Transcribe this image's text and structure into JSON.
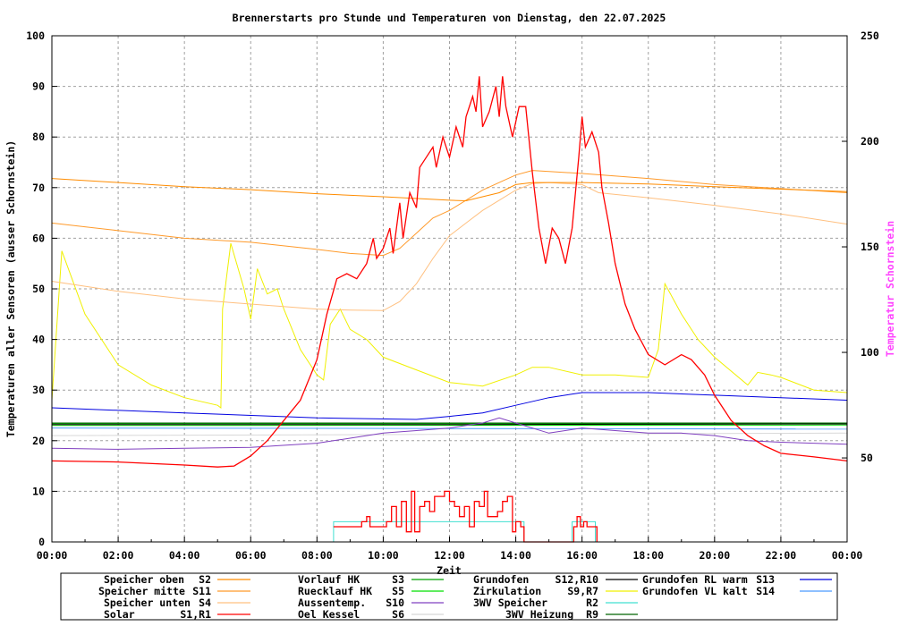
{
  "chart_data": {
    "type": "line",
    "title": "Brennerstarts pro Stunde und Temperaturen von Dienstag, den 22.07.2025",
    "xlabel": "Zeit",
    "ylabel": "Temperaturen aller Sensoren (ausser Schornstein)",
    "y2label": "Temperatur Schornstein",
    "y2label_color": "#ff44ff",
    "xlim": [
      0,
      24
    ],
    "ylim": [
      0,
      100
    ],
    "y2lim": [
      10.2,
      250
    ],
    "grid": true,
    "x_ticks": [
      "00:00",
      "02:00",
      "04:00",
      "06:00",
      "08:00",
      "10:00",
      "12:00",
      "14:00",
      "16:00",
      "18:00",
      "20:00",
      "22:00",
      "00:00"
    ],
    "y_ticks": [
      "0",
      "10",
      "20",
      "30",
      "40",
      "50",
      "60",
      "70",
      "80",
      "90",
      "100"
    ],
    "y2_ticks": [
      "50",
      "100",
      "150",
      "200",
      "250"
    ],
    "legend_placement": "bottom",
    "series": [
      {
        "name": "Speicher oben",
        "code": "S2",
        "color": "#ff8c00",
        "points": [
          [
            0,
            71.8
          ],
          [
            2,
            71
          ],
          [
            4,
            70.2
          ],
          [
            6,
            69.6
          ],
          [
            8,
            68.8
          ],
          [
            10,
            68.2
          ],
          [
            12,
            67.5
          ],
          [
            12.5,
            67.4
          ],
          [
            13,
            68.2
          ],
          [
            13.5,
            69
          ],
          [
            14,
            70.6
          ],
          [
            14.5,
            71
          ],
          [
            16,
            71
          ],
          [
            18,
            70.7
          ],
          [
            20,
            70.2
          ],
          [
            22,
            69.7
          ],
          [
            24,
            69.2
          ]
        ]
      },
      {
        "name": "Speicher mitte",
        "code": "S11",
        "color": "#ff9a2a",
        "points": [
          [
            0,
            63
          ],
          [
            2,
            61.5
          ],
          [
            4,
            60
          ],
          [
            6,
            59.2
          ],
          [
            8,
            57.8
          ],
          [
            9,
            57
          ],
          [
            10,
            56.6
          ],
          [
            10.5,
            58
          ],
          [
            11,
            61
          ],
          [
            11.5,
            64
          ],
          [
            12,
            65.5
          ],
          [
            12.5,
            67.5
          ],
          [
            13,
            69.5
          ],
          [
            13.5,
            71
          ],
          [
            14,
            72.5
          ],
          [
            14.5,
            73.4
          ],
          [
            15,
            73.2
          ],
          [
            16,
            72.8
          ],
          [
            18,
            71.8
          ],
          [
            20,
            70.6
          ],
          [
            22,
            69.8
          ],
          [
            24,
            69
          ]
        ]
      },
      {
        "name": "Speicher unten",
        "code": "S4",
        "color": "#ffc080",
        "points": [
          [
            0,
            51.5
          ],
          [
            2,
            49.5
          ],
          [
            4,
            48
          ],
          [
            6,
            47
          ],
          [
            8,
            46
          ],
          [
            9,
            45.8
          ],
          [
            10,
            45.7
          ],
          [
            10.5,
            47.5
          ],
          [
            11,
            51
          ],
          [
            11.5,
            56
          ],
          [
            12,
            60.5
          ],
          [
            12.5,
            63
          ],
          [
            13,
            65.5
          ],
          [
            13.5,
            67.5
          ],
          [
            14,
            69.5
          ],
          [
            14.5,
            70.8
          ],
          [
            15,
            71
          ],
          [
            16,
            70.6
          ],
          [
            16.5,
            69
          ],
          [
            18,
            68
          ],
          [
            20,
            66.5
          ],
          [
            22,
            64.8
          ],
          [
            24,
            62.8
          ]
        ]
      },
      {
        "name": "Solar",
        "code": "S1,R1",
        "color": "#ff0000",
        "points": [
          [
            0,
            16
          ],
          [
            2,
            15.8
          ],
          [
            4,
            15.2
          ],
          [
            5,
            14.8
          ],
          [
            5.5,
            15
          ],
          [
            6,
            17
          ],
          [
            6.5,
            20
          ],
          [
            7,
            24
          ],
          [
            7.5,
            28
          ],
          [
            8,
            36
          ],
          [
            8.3,
            45
          ],
          [
            8.6,
            52
          ],
          [
            8.9,
            53
          ],
          [
            9.2,
            52
          ],
          [
            9.5,
            55
          ],
          [
            9.7,
            60
          ],
          [
            9.8,
            56
          ],
          [
            10,
            58
          ],
          [
            10.2,
            62
          ],
          [
            10.3,
            57
          ],
          [
            10.5,
            67
          ],
          [
            10.6,
            60
          ],
          [
            10.8,
            69
          ],
          [
            11,
            66
          ],
          [
            11.1,
            74
          ],
          [
            11.3,
            76
          ],
          [
            11.5,
            78
          ],
          [
            11.6,
            74
          ],
          [
            11.8,
            80
          ],
          [
            12,
            76
          ],
          [
            12.2,
            82
          ],
          [
            12.4,
            78
          ],
          [
            12.5,
            84
          ],
          [
            12.7,
            88
          ],
          [
            12.8,
            85
          ],
          [
            12.9,
            92
          ],
          [
            13,
            82
          ],
          [
            13.2,
            85
          ],
          [
            13.4,
            90
          ],
          [
            13.5,
            84
          ],
          [
            13.6,
            92
          ],
          [
            13.7,
            86
          ],
          [
            13.9,
            80
          ],
          [
            14.1,
            86
          ],
          [
            14.3,
            86
          ],
          [
            14.5,
            73
          ],
          [
            14.7,
            62
          ],
          [
            14.9,
            55
          ],
          [
            15.1,
            62
          ],
          [
            15.3,
            60
          ],
          [
            15.5,
            55
          ],
          [
            15.7,
            62
          ],
          [
            15.9,
            76
          ],
          [
            16,
            84
          ],
          [
            16.1,
            78
          ],
          [
            16.3,
            81
          ],
          [
            16.5,
            77
          ],
          [
            16.6,
            70
          ],
          [
            16.8,
            63
          ],
          [
            17,
            55
          ],
          [
            17.3,
            47
          ],
          [
            17.6,
            42
          ],
          [
            18,
            37
          ],
          [
            18.5,
            35
          ],
          [
            19,
            37
          ],
          [
            19.3,
            36
          ],
          [
            19.7,
            33
          ],
          [
            20,
            29
          ],
          [
            20.5,
            24
          ],
          [
            21,
            21
          ],
          [
            21.5,
            19
          ],
          [
            22,
            17.5
          ],
          [
            23,
            16.8
          ],
          [
            24,
            16
          ]
        ]
      },
      {
        "name": "Vorlauf HK",
        "code": "S3",
        "color": "#00a000",
        "points": [
          [
            0,
            23.4
          ],
          [
            24,
            23.4
          ]
        ]
      },
      {
        "name": "Ruecklauf HK",
        "code": "S5",
        "color": "#00e000",
        "points": [
          [
            0,
            23
          ],
          [
            24,
            23.1
          ]
        ]
      },
      {
        "name": "Aussentemp.",
        "code": "S10",
        "color": "#8040c0",
        "points": [
          [
            0,
            18.5
          ],
          [
            2,
            18.3
          ],
          [
            4,
            18.5
          ],
          [
            6,
            18.7
          ],
          [
            8,
            19.5
          ],
          [
            9,
            20.5
          ],
          [
            10,
            21.5
          ],
          [
            11,
            22
          ],
          [
            12,
            22.5
          ],
          [
            13,
            23.5
          ],
          [
            13.5,
            24.5
          ],
          [
            14,
            23.5
          ],
          [
            15,
            21.5
          ],
          [
            16,
            22.5
          ],
          [
            17,
            22
          ],
          [
            18,
            21.5
          ],
          [
            19,
            21.5
          ],
          [
            20,
            21
          ],
          [
            21,
            20
          ],
          [
            22,
            19.7
          ],
          [
            24,
            19.3
          ]
        ]
      },
      {
        "name": "Oel Kessel",
        "code": "S6",
        "color": "#d8d8d8",
        "points": [
          [
            0,
            21
          ],
          [
            24,
            21.5
          ]
        ]
      },
      {
        "name": "Grundofen",
        "code": "S12,R10",
        "color": "#000000",
        "points": [
          [
            0,
            23.2
          ],
          [
            12,
            23.2
          ],
          [
            24,
            23.3
          ]
        ]
      },
      {
        "name": "Zirkulation",
        "code": "S9,R7",
        "color": "#f0f000",
        "points": [
          [
            0,
            28
          ],
          [
            0.3,
            57.5
          ],
          [
            1,
            45
          ],
          [
            2,
            35
          ],
          [
            3,
            31
          ],
          [
            4,
            28.5
          ],
          [
            5,
            27
          ],
          [
            5.1,
            26.5
          ],
          [
            5.15,
            46
          ],
          [
            5.4,
            59
          ],
          [
            5.8,
            50
          ],
          [
            6,
            44
          ],
          [
            6.2,
            54
          ],
          [
            6.5,
            49
          ],
          [
            6.8,
            50
          ],
          [
            7,
            46
          ],
          [
            7.5,
            38
          ],
          [
            8,
            33
          ],
          [
            8.2,
            32
          ],
          [
            8.4,
            43
          ],
          [
            8.7,
            46
          ],
          [
            9,
            42
          ],
          [
            9.5,
            40
          ],
          [
            10,
            36.5
          ],
          [
            11,
            34
          ],
          [
            12,
            31.5
          ],
          [
            13,
            30.8
          ],
          [
            14,
            33
          ],
          [
            14.5,
            34.5
          ],
          [
            15,
            34.5
          ],
          [
            16,
            33
          ],
          [
            17,
            33
          ],
          [
            18,
            32.5
          ],
          [
            18.3,
            38
          ],
          [
            18.5,
            51
          ],
          [
            19,
            45
          ],
          [
            19.5,
            40
          ],
          [
            20,
            36.5
          ],
          [
            21,
            31
          ],
          [
            21.3,
            33.5
          ],
          [
            21.7,
            33
          ],
          [
            22,
            32.5
          ],
          [
            23,
            30
          ],
          [
            24,
            29.5
          ]
        ]
      },
      {
        "name": "3WV Speicher",
        "code": "R2",
        "color": "#40e0d0",
        "steps": true,
        "points": [
          [
            0,
            0
          ],
          [
            8.5,
            4
          ],
          [
            14.25,
            0
          ],
          [
            15.7,
            4
          ],
          [
            16.4,
            0
          ],
          [
            24,
            0
          ]
        ]
      },
      {
        "name": "3WV Heizung",
        "code": "R9",
        "color": "#006400",
        "points": [
          [
            0,
            23.5
          ],
          [
            24,
            23.5
          ]
        ]
      },
      {
        "name": "Grundofen RL warm",
        "code": "S13",
        "color": "#0000e0",
        "points": [
          [
            0,
            26.5
          ],
          [
            4,
            25.5
          ],
          [
            8,
            24.5
          ],
          [
            11,
            24.2
          ],
          [
            12,
            24.8
          ],
          [
            13,
            25.5
          ],
          [
            14,
            27
          ],
          [
            15,
            28.5
          ],
          [
            16,
            29.5
          ],
          [
            18,
            29.5
          ],
          [
            20,
            29
          ],
          [
            22,
            28.5
          ],
          [
            24,
            28
          ]
        ]
      },
      {
        "name": "Grundofen VL kalt",
        "code": "S14",
        "color": "#4a9aff",
        "points": [
          [
            0,
            22.5
          ],
          [
            24,
            22.3
          ]
        ]
      }
    ],
    "burner_starts": {
      "color": "#ff0000",
      "steps": [
        [
          8.5,
          3
        ],
        [
          9.35,
          4
        ],
        [
          9.5,
          5
        ],
        [
          9.6,
          3
        ],
        [
          9.95,
          3
        ],
        [
          10.1,
          4
        ],
        [
          10.25,
          7
        ],
        [
          10.4,
          3
        ],
        [
          10.55,
          8
        ],
        [
          10.7,
          2
        ],
        [
          10.85,
          10
        ],
        [
          10.95,
          2
        ],
        [
          11.1,
          7
        ],
        [
          11.25,
          8
        ],
        [
          11.4,
          6
        ],
        [
          11.55,
          9
        ],
        [
          11.7,
          9
        ],
        [
          11.85,
          10
        ],
        [
          12.0,
          8
        ],
        [
          12.15,
          7
        ],
        [
          12.3,
          5
        ],
        [
          12.45,
          7
        ],
        [
          12.6,
          3
        ],
        [
          12.75,
          8
        ],
        [
          12.9,
          7
        ],
        [
          13.05,
          10
        ],
        [
          13.15,
          5
        ],
        [
          13.3,
          5
        ],
        [
          13.45,
          6
        ],
        [
          13.6,
          8
        ],
        [
          13.75,
          9
        ],
        [
          13.9,
          2
        ],
        [
          14.0,
          4
        ],
        [
          14.15,
          3
        ],
        [
          14.25,
          0
        ],
        [
          15.75,
          3
        ],
        [
          15.85,
          5
        ],
        [
          15.95,
          3
        ],
        [
          16.05,
          4
        ],
        [
          16.15,
          3
        ],
        [
          16.45,
          0
        ]
      ]
    }
  }
}
